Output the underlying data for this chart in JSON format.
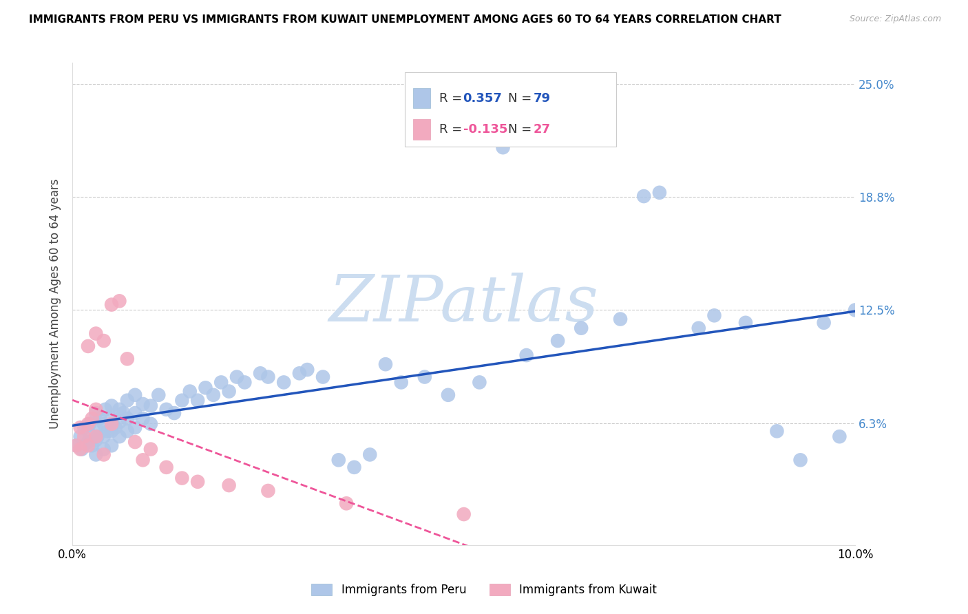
{
  "title": "IMMIGRANTS FROM PERU VS IMMIGRANTS FROM KUWAIT UNEMPLOYMENT AMONG AGES 60 TO 64 YEARS CORRELATION CHART",
  "source": "Source: ZipAtlas.com",
  "ylabel": "Unemployment Among Ages 60 to 64 years",
  "xmin": 0.0,
  "xmax": 0.1,
  "ymin": -0.005,
  "ymax": 0.262,
  "right_ytick_values": [
    0.0,
    0.0625,
    0.125,
    0.1875,
    0.25
  ],
  "right_ytick_labels": [
    "",
    "6.3%",
    "12.5%",
    "18.8%",
    "25.0%"
  ],
  "legend_peru": "Immigrants from Peru",
  "legend_kuwait": "Immigrants from Kuwait",
  "R_peru": 0.357,
  "N_peru": 79,
  "R_kuwait": -0.135,
  "N_kuwait": 27,
  "peru_color": "#aec6e8",
  "kuwait_color": "#f2aabf",
  "peru_line_color": "#2255bb",
  "kuwait_line_color": "#ee5599",
  "watermark": "ZIPatlas",
  "watermark_color": "#ddeeff",
  "title_fontsize": 11,
  "axis_label_fontsize": 12,
  "tick_fontsize": 12,
  "right_tick_color": "#4488cc",
  "peru_x": [
    0.0005,
    0.001,
    0.0012,
    0.0015,
    0.002,
    0.002,
    0.0022,
    0.0025,
    0.003,
    0.003,
    0.003,
    0.003,
    0.0032,
    0.0035,
    0.004,
    0.004,
    0.004,
    0.0042,
    0.0045,
    0.005,
    0.005,
    0.005,
    0.005,
    0.0055,
    0.006,
    0.006,
    0.006,
    0.0065,
    0.007,
    0.007,
    0.007,
    0.008,
    0.008,
    0.008,
    0.009,
    0.009,
    0.01,
    0.01,
    0.011,
    0.012,
    0.013,
    0.014,
    0.015,
    0.016,
    0.017,
    0.018,
    0.019,
    0.02,
    0.021,
    0.022,
    0.024,
    0.025,
    0.027,
    0.029,
    0.03,
    0.032,
    0.034,
    0.036,
    0.038,
    0.04,
    0.042,
    0.045,
    0.048,
    0.052,
    0.055,
    0.058,
    0.062,
    0.065,
    0.07,
    0.073,
    0.075,
    0.08,
    0.082,
    0.086,
    0.09,
    0.093,
    0.096,
    0.098,
    0.1
  ],
  "peru_y": [
    0.05,
    0.055,
    0.048,
    0.06,
    0.052,
    0.058,
    0.062,
    0.05,
    0.045,
    0.053,
    0.06,
    0.068,
    0.055,
    0.065,
    0.048,
    0.055,
    0.062,
    0.07,
    0.058,
    0.05,
    0.058,
    0.065,
    0.072,
    0.06,
    0.055,
    0.063,
    0.07,
    0.068,
    0.058,
    0.065,
    0.075,
    0.06,
    0.068,
    0.078,
    0.065,
    0.073,
    0.062,
    0.072,
    0.078,
    0.07,
    0.068,
    0.075,
    0.08,
    0.075,
    0.082,
    0.078,
    0.085,
    0.08,
    0.088,
    0.085,
    0.09,
    0.088,
    0.085,
    0.09,
    0.092,
    0.088,
    0.042,
    0.038,
    0.045,
    0.095,
    0.085,
    0.088,
    0.078,
    0.085,
    0.215,
    0.1,
    0.108,
    0.115,
    0.12,
    0.188,
    0.19,
    0.115,
    0.122,
    0.118,
    0.058,
    0.042,
    0.118,
    0.055,
    0.125
  ],
  "kuwait_x": [
    0.0005,
    0.001,
    0.001,
    0.0015,
    0.002,
    0.002,
    0.002,
    0.0025,
    0.003,
    0.003,
    0.003,
    0.004,
    0.004,
    0.005,
    0.005,
    0.006,
    0.007,
    0.008,
    0.009,
    0.01,
    0.012,
    0.014,
    0.016,
    0.02,
    0.025,
    0.035,
    0.05
  ],
  "kuwait_y": [
    0.05,
    0.048,
    0.06,
    0.055,
    0.05,
    0.062,
    0.105,
    0.065,
    0.055,
    0.07,
    0.112,
    0.045,
    0.108,
    0.062,
    0.128,
    0.13,
    0.098,
    0.052,
    0.042,
    0.048,
    0.038,
    0.032,
    0.03,
    0.028,
    0.025,
    0.018,
    0.012
  ]
}
